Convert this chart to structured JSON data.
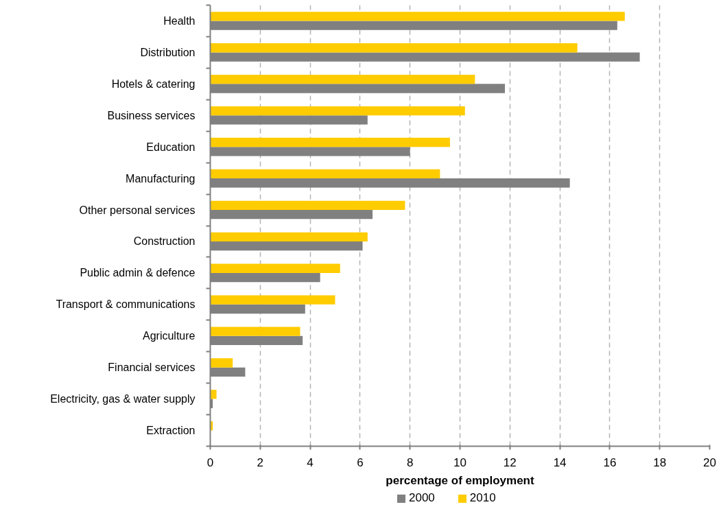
{
  "chart_data": {
    "type": "bar",
    "orientation": "horizontal",
    "categories": [
      "Health",
      "Distribution",
      "Hotels & catering",
      "Business services",
      "Education",
      "Manufacturing",
      "Other personal services",
      "Construction",
      "Public admin & defence",
      "Transport & communications",
      "Agriculture",
      "Financial services",
      "Electricity, gas & water supply",
      "Extraction"
    ],
    "series": [
      {
        "name": "2000",
        "color": "#808080",
        "values": [
          16.3,
          17.2,
          11.8,
          6.3,
          8.0,
          14.4,
          6.5,
          6.1,
          4.4,
          3.8,
          3.7,
          1.4,
          0.1,
          0
        ]
      },
      {
        "name": "2010",
        "color": "#ffcc00",
        "values": [
          16.6,
          14.7,
          10.6,
          10.2,
          9.6,
          9.2,
          7.8,
          6.3,
          5.2,
          5.0,
          3.6,
          0.9,
          0.25,
          0.1
        ]
      }
    ],
    "xlabel": "percentage of employment",
    "xlim": [
      0,
      20
    ],
    "xticks": [
      0,
      2,
      4,
      6,
      8,
      10,
      12,
      14,
      16,
      18,
      20
    ],
    "grid": "x",
    "legend": "bottom"
  }
}
